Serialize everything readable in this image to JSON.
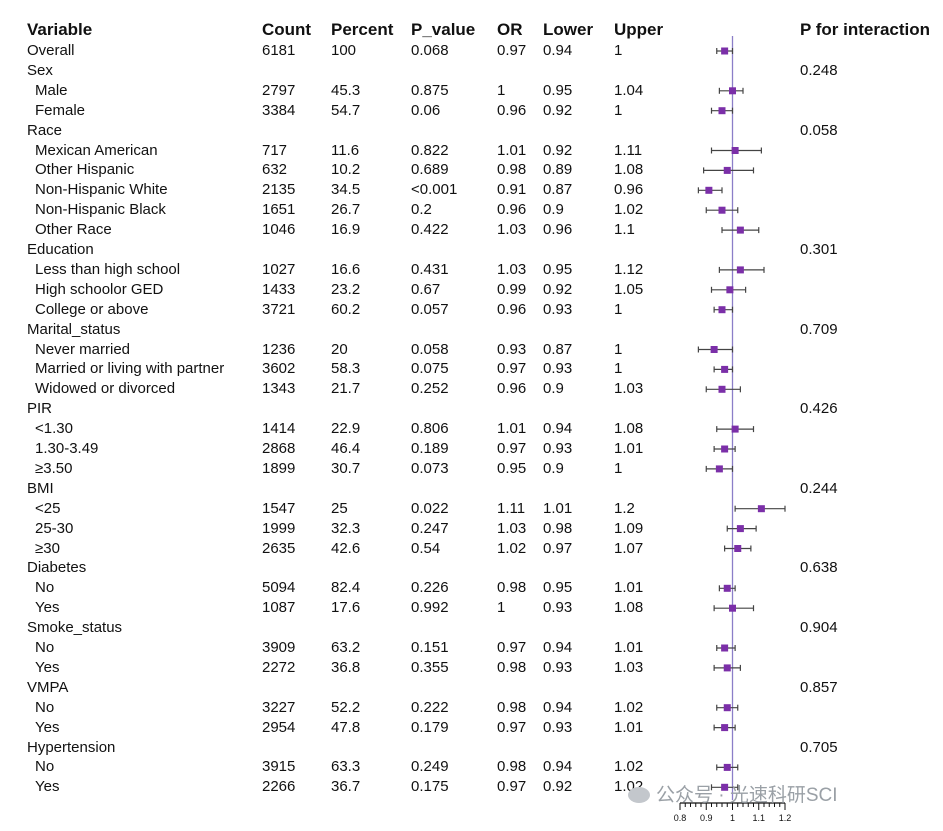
{
  "headers": {
    "variable": "Variable",
    "count": "Count",
    "percent": "Percent",
    "p_value": "P_value",
    "or": "OR",
    "lower": "Lower",
    "upper": "Upper",
    "p_interaction": "P for interaction"
  },
  "rows": [
    {
      "label": "Overall",
      "count": "6181",
      "percent": "100",
      "p": "0.068",
      "or": "0.97",
      "lower": "0.94",
      "upper": "1",
      "pint": "",
      "sub": false
    },
    {
      "label": "Sex",
      "count": "",
      "percent": "",
      "p": "",
      "or": "",
      "lower": "",
      "upper": "",
      "pint": "0.248",
      "sub": false
    },
    {
      "label": "Male",
      "count": "2797",
      "percent": "45.3",
      "p": "0.875",
      "or": "1",
      "lower": "0.95",
      "upper": "1.04",
      "pint": "",
      "sub": true
    },
    {
      "label": "Female",
      "count": "3384",
      "percent": "54.7",
      "p": "0.06",
      "or": "0.96",
      "lower": "0.92",
      "upper": "1",
      "pint": "",
      "sub": true
    },
    {
      "label": "Race",
      "count": "",
      "percent": "",
      "p": "",
      "or": "",
      "lower": "",
      "upper": "",
      "pint": "0.058",
      "sub": false
    },
    {
      "label": "Mexican American",
      "count": "717",
      "percent": "11.6",
      "p": "0.822",
      "or": "1.01",
      "lower": "0.92",
      "upper": "1.11",
      "pint": "",
      "sub": true
    },
    {
      "label": "Other Hispanic",
      "count": "632",
      "percent": "10.2",
      "p": "0.689",
      "or": "0.98",
      "lower": "0.89",
      "upper": "1.08",
      "pint": "",
      "sub": true
    },
    {
      "label": "Non-Hispanic White",
      "count": "2135",
      "percent": "34.5",
      "p": "<0.001",
      "or": "0.91",
      "lower": "0.87",
      "upper": "0.96",
      "pint": "",
      "sub": true
    },
    {
      "label": "Non-Hispanic Black",
      "count": "1651",
      "percent": "26.7",
      "p": "0.2",
      "or": "0.96",
      "lower": "0.9",
      "upper": "1.02",
      "pint": "",
      "sub": true
    },
    {
      "label": "Other Race",
      "count": "1046",
      "percent": "16.9",
      "p": "0.422",
      "or": "1.03",
      "lower": "0.96",
      "upper": "1.1",
      "pint": "",
      "sub": true
    },
    {
      "label": "Education",
      "count": "",
      "percent": "",
      "p": "",
      "or": "",
      "lower": "",
      "upper": "",
      "pint": "0.301",
      "sub": false
    },
    {
      "label": "Less than high school",
      "count": "1027",
      "percent": "16.6",
      "p": "0.431",
      "or": "1.03",
      "lower": "0.95",
      "upper": "1.12",
      "pint": "",
      "sub": true
    },
    {
      "label": "High schoolor GED",
      "count": "1433",
      "percent": "23.2",
      "p": "0.67",
      "or": "0.99",
      "lower": "0.92",
      "upper": "1.05",
      "pint": "",
      "sub": true
    },
    {
      "label": "College or above",
      "count": "3721",
      "percent": "60.2",
      "p": "0.057",
      "or": "0.96",
      "lower": "0.93",
      "upper": "1",
      "pint": "",
      "sub": true
    },
    {
      "label": "Marital_status",
      "count": "",
      "percent": "",
      "p": "",
      "or": "",
      "lower": "",
      "upper": "",
      "pint": "0.709",
      "sub": false
    },
    {
      "label": "Never married",
      "count": "1236",
      "percent": "20",
      "p": "0.058",
      "or": "0.93",
      "lower": "0.87",
      "upper": "1",
      "pint": "",
      "sub": true
    },
    {
      "label": "Married or living with partner",
      "count": "3602",
      "percent": "58.3",
      "p": "0.075",
      "or": "0.97",
      "lower": "0.93",
      "upper": "1",
      "pint": "",
      "sub": true
    },
    {
      "label": "Widowed or divorced",
      "count": "1343",
      "percent": "21.7",
      "p": "0.252",
      "or": "0.96",
      "lower": "0.9",
      "upper": "1.03",
      "pint": "",
      "sub": true
    },
    {
      "label": "PIR",
      "count": "",
      "percent": "",
      "p": "",
      "or": "",
      "lower": "",
      "upper": "",
      "pint": "0.426",
      "sub": false
    },
    {
      "label": "<1.30",
      "count": "1414",
      "percent": "22.9",
      "p": "0.806",
      "or": "1.01",
      "lower": "0.94",
      "upper": "1.08",
      "pint": "",
      "sub": true
    },
    {
      "label": "1.30-3.49",
      "count": "2868",
      "percent": "46.4",
      "p": "0.189",
      "or": "0.97",
      "lower": "0.93",
      "upper": "1.01",
      "pint": "",
      "sub": true
    },
    {
      "label": "≥3.50",
      "count": "1899",
      "percent": "30.7",
      "p": "0.073",
      "or": "0.95",
      "lower": "0.9",
      "upper": "1",
      "pint": "",
      "sub": true
    },
    {
      "label": "BMI",
      "count": "",
      "percent": "",
      "p": "",
      "or": "",
      "lower": "",
      "upper": "",
      "pint": "0.244",
      "sub": false
    },
    {
      "label": "<25",
      "count": "1547",
      "percent": "25",
      "p": "0.022",
      "or": "1.11",
      "lower": "1.01",
      "upper": "1.2",
      "pint": "",
      "sub": true
    },
    {
      "label": "25-30",
      "count": "1999",
      "percent": "32.3",
      "p": "0.247",
      "or": "1.03",
      "lower": "0.98",
      "upper": "1.09",
      "pint": "",
      "sub": true
    },
    {
      "label": "≥30",
      "count": "2635",
      "percent": "42.6",
      "p": "0.54",
      "or": "1.02",
      "lower": "0.97",
      "upper": "1.07",
      "pint": "",
      "sub": true
    },
    {
      "label": "Diabetes",
      "count": "",
      "percent": "",
      "p": "",
      "or": "",
      "lower": "",
      "upper": "",
      "pint": "0.638",
      "sub": false
    },
    {
      "label": "No",
      "count": "5094",
      "percent": "82.4",
      "p": "0.226",
      "or": "0.98",
      "lower": "0.95",
      "upper": "1.01",
      "pint": "",
      "sub": true
    },
    {
      "label": "Yes",
      "count": "1087",
      "percent": "17.6",
      "p": "0.992",
      "or": "1",
      "lower": "0.93",
      "upper": "1.08",
      "pint": "",
      "sub": true
    },
    {
      "label": "Smoke_status",
      "count": "",
      "percent": "",
      "p": "",
      "or": "",
      "lower": "",
      "upper": "",
      "pint": "0.904",
      "sub": false
    },
    {
      "label": "No",
      "count": "3909",
      "percent": "63.2",
      "p": "0.151",
      "or": "0.97",
      "lower": "0.94",
      "upper": "1.01",
      "pint": "",
      "sub": true
    },
    {
      "label": "Yes",
      "count": "2272",
      "percent": "36.8",
      "p": "0.355",
      "or": "0.98",
      "lower": "0.93",
      "upper": "1.03",
      "pint": "",
      "sub": true
    },
    {
      "label": "VMPA",
      "count": "",
      "percent": "",
      "p": "",
      "or": "",
      "lower": "",
      "upper": "",
      "pint": "0.857",
      "sub": false
    },
    {
      "label": "No",
      "count": "3227",
      "percent": "52.2",
      "p": "0.222",
      "or": "0.98",
      "lower": "0.94",
      "upper": "1.02",
      "pint": "",
      "sub": true
    },
    {
      "label": "Yes",
      "count": "2954",
      "percent": "47.8",
      "p": "0.179",
      "or": "0.97",
      "lower": "0.93",
      "upper": "1.01",
      "pint": "",
      "sub": true
    },
    {
      "label": "Hypertension",
      "count": "",
      "percent": "",
      "p": "",
      "or": "",
      "lower": "",
      "upper": "",
      "pint": "0.705",
      "sub": false
    },
    {
      "label": "No",
      "count": "3915",
      "percent": "63.3",
      "p": "0.249",
      "or": "0.98",
      "lower": "0.94",
      "upper": "1.02",
      "pint": "",
      "sub": true
    },
    {
      "label": "Yes",
      "count": "2266",
      "percent": "36.7",
      "p": "0.175",
      "or": "0.97",
      "lower": "0.92",
      "upper": "1.02",
      "pint": "",
      "sub": true
    }
  ],
  "chart_data": {
    "type": "scatter",
    "title": "",
    "xlabel": "",
    "ylabel": "",
    "xlim": [
      0.8,
      1.2
    ],
    "x_ticks": [
      "0.8",
      "0.9",
      "1",
      "1.1",
      "1.2"
    ],
    "reference_line": 1,
    "grid": false,
    "colors": {
      "point": "#7b2fa8",
      "whisker": "#444444",
      "reference": "#8b7ec8"
    },
    "categories": [
      "Overall",
      "Male",
      "Female",
      "Mexican American",
      "Other Hispanic",
      "Non-Hispanic White",
      "Non-Hispanic Black",
      "Other Race",
      "Less than high school",
      "High schoolor GED",
      "College or above",
      "Never married",
      "Married or living with partner",
      "Widowed or divorced",
      "<1.30",
      "1.30-3.49",
      "≥3.50",
      "<25",
      "25-30",
      "≥30",
      "No",
      "Yes",
      "No",
      "Yes",
      "No",
      "Yes",
      "No",
      "Yes"
    ],
    "series": [
      {
        "or": [
          0.97,
          1,
          0.96,
          1.01,
          0.98,
          0.91,
          0.96,
          1.03,
          1.03,
          0.99,
          0.96,
          0.93,
          0.97,
          0.96,
          1.01,
          0.97,
          0.95,
          1.11,
          1.03,
          1.02,
          0.98,
          1,
          0.97,
          0.98,
          0.98,
          0.97,
          0.98,
          0.97
        ],
        "lower": [
          0.94,
          0.95,
          0.92,
          0.92,
          0.89,
          0.87,
          0.9,
          0.96,
          0.95,
          0.92,
          0.93,
          0.87,
          0.93,
          0.9,
          0.94,
          0.93,
          0.9,
          1.01,
          0.98,
          0.97,
          0.95,
          0.93,
          0.94,
          0.93,
          0.94,
          0.93,
          0.94,
          0.92
        ],
        "upper": [
          1,
          1.04,
          1,
          1.11,
          1.08,
          0.96,
          1.02,
          1.1,
          1.12,
          1.05,
          1,
          1,
          1,
          1.03,
          1.08,
          1.01,
          1,
          1.2,
          1.09,
          1.07,
          1.01,
          1.08,
          1.01,
          1.03,
          1.02,
          1.01,
          1.02,
          1.02
        ]
      }
    ]
  },
  "watermark": "公众号 · 光速科研SCI"
}
